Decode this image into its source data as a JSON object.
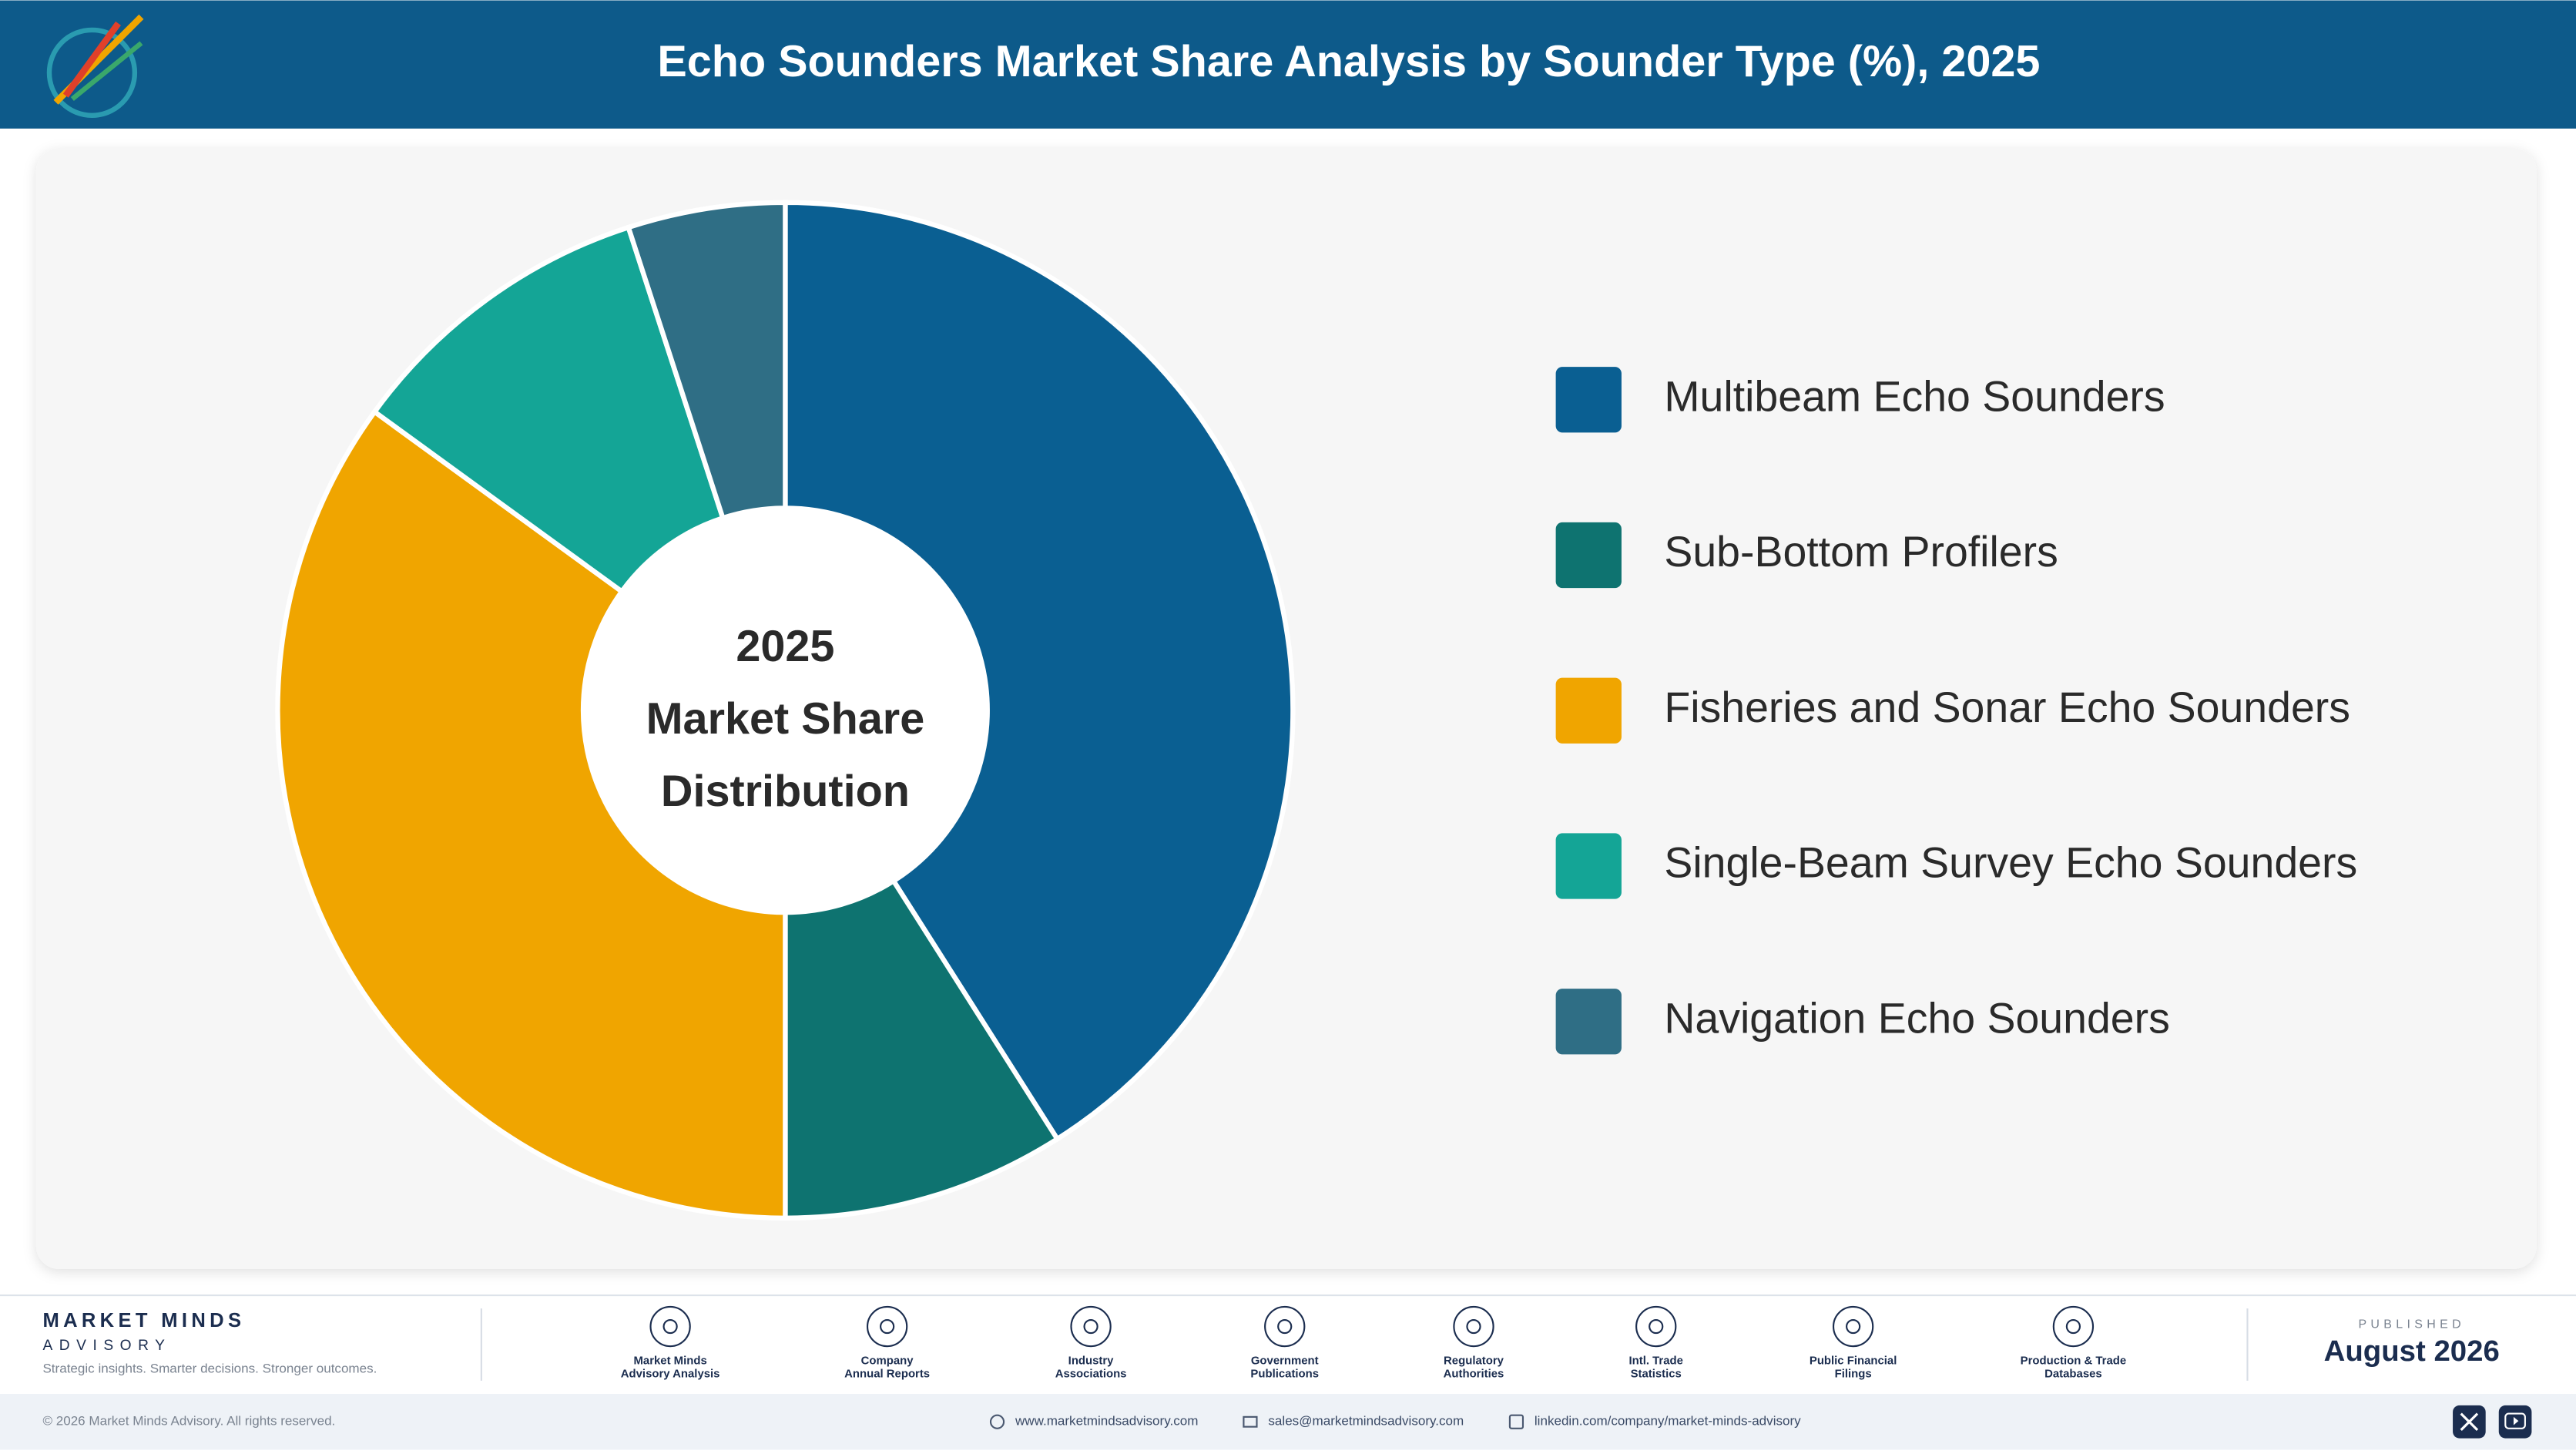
{
  "header": {
    "title": "Echo Sounders Market Share Analysis by Sounder Type (%), 2025"
  },
  "chart_data": {
    "type": "pie",
    "center_text": [
      "2025",
      "Market Share",
      "Distribution"
    ],
    "categories": [
      "Multibeam Echo Sounders",
      "Sub-Bottom Profilers",
      "Fisheries and Sonar Echo Sounders",
      "Single-Beam Survey Echo Sounders",
      "Navigation Echo Sounders"
    ],
    "values": [
      41,
      9,
      35,
      10,
      5
    ],
    "colors": [
      "#0a5f92",
      "#0e7370",
      "#f0a500",
      "#14a596",
      "#2f6e85"
    ],
    "legend": "right"
  },
  "footer": {
    "brand": "MARKET MINDS",
    "brand_sub": "ADVISORY",
    "tagline": "Strategic insights. Smarter decisions. Stronger outcomes.",
    "sources": [
      [
        "Market Minds",
        "Advisory Analysis"
      ],
      [
        "Company",
        "Annual Reports"
      ],
      [
        "Industry",
        "Associations"
      ],
      [
        "Government",
        "Publications"
      ],
      [
        "Regulatory",
        "Authorities"
      ],
      [
        "Intl. Trade",
        "Statistics"
      ],
      [
        "Public Financial",
        "Filings"
      ],
      [
        "Production & Trade",
        "Databases"
      ]
    ],
    "published_label": "PUBLISHED",
    "published_date": "August 2026",
    "copyright": "© 2026 Market Minds Advisory. All rights reserved.",
    "website": "www.marketmindsadvisory.com",
    "email": "sales@marketmindsadvisory.com",
    "linkedin": "linkedin.com/company/market-minds-advisory"
  }
}
